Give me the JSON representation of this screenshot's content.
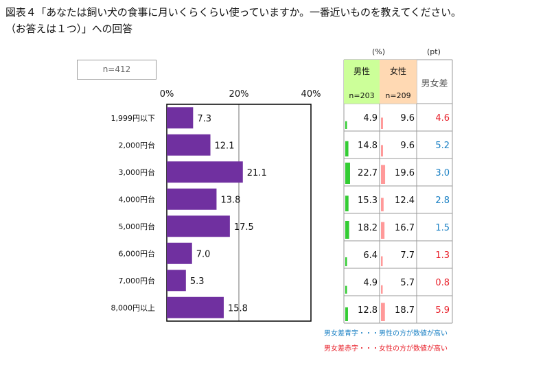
{
  "title_line1": "図表４「あなたは飼い犬の食事に月いくらくらい使っていますか。一番近いものを教えてください。",
  "title_line2": "（お答えは１つ）」への回答",
  "sample_label": "n=412",
  "table": {
    "unit_pct": "(%)",
    "unit_pt": "(pt)",
    "male_label": "男性",
    "male_n": "n=203",
    "female_label": "女性",
    "female_n": "n=209",
    "diff_label": "男女差",
    "rows": [
      {
        "male": "4.9",
        "female": "9.6",
        "diff": "4.6",
        "diff_color": "#e8202a"
      },
      {
        "male": "14.8",
        "female": "9.6",
        "diff": "5.2",
        "diff_color": "#1a80c4"
      },
      {
        "male": "22.7",
        "female": "19.6",
        "diff": "3.0",
        "diff_color": "#1a80c4"
      },
      {
        "male": "15.3",
        "female": "12.4",
        "diff": "2.8",
        "diff_color": "#1a80c4"
      },
      {
        "male": "18.2",
        "female": "16.7",
        "diff": "1.5",
        "diff_color": "#1a80c4"
      },
      {
        "male": "6.4",
        "female": "7.7",
        "diff": "1.3",
        "diff_color": "#e8202a"
      },
      {
        "male": "4.9",
        "female": "5.7",
        "diff": "0.8",
        "diff_color": "#e8202a"
      },
      {
        "male": "12.8",
        "female": "18.7",
        "diff": "5.9",
        "diff_color": "#e8202a"
      }
    ]
  },
  "notes": {
    "blue": "男女差青字・・・男性の方が数値が高い",
    "red": "男女差赤字・・・女性の方が数値が高い"
  },
  "colors": {
    "bar": "#7030a0",
    "male_bar": "#33cc33",
    "female_bar": "#ff9999",
    "male_header_bg": "#ccff99",
    "female_header_bg": "#ffd9b3",
    "blue_text": "#1a80c4",
    "red_text": "#e8202a"
  },
  "chart_data": {
    "type": "bar",
    "orientation": "horizontal",
    "categories": [
      "1,999円以下",
      "2,000円台",
      "3,000円台",
      "4,000円台",
      "5,000円台",
      "6,000円台",
      "7,000円台",
      "8,000円以上"
    ],
    "values": [
      7.3,
      12.1,
      21.1,
      13.8,
      17.5,
      7.0,
      5.3,
      15.8
    ],
    "tick_labels": [
      "0%",
      "20%",
      "40%"
    ],
    "xlim": [
      0,
      40
    ],
    "gridline_at": [
      20
    ],
    "male": [
      4.9,
      14.8,
      22.7,
      15.3,
      18.2,
      6.4,
      4.9,
      12.8
    ],
    "female": [
      9.6,
      9.6,
      19.6,
      12.4,
      16.7,
      7.7,
      5.7,
      18.7
    ]
  }
}
